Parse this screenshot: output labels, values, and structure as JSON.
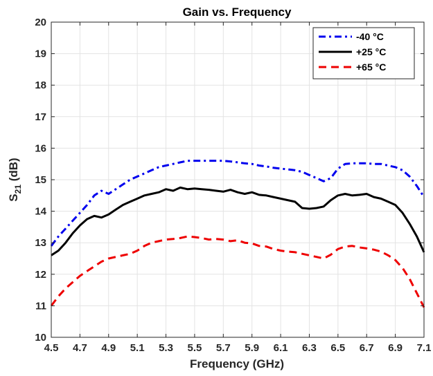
{
  "chart_data": {
    "type": "line",
    "title": "Gain vs. Frequency",
    "xlabel": "Frequency (GHz)",
    "ylabel_main": "S",
    "ylabel_sub": "21",
    "ylabel_suffix": " (dB)",
    "xlim": [
      4.5,
      7.1
    ],
    "ylim": [
      10,
      20
    ],
    "xticks": [
      "4.5",
      "4.7",
      "4.9",
      "5.1",
      "5.3",
      "5.5",
      "5.7",
      "5.9",
      "6.1",
      "6.3",
      "6.5",
      "6.7",
      "6.9",
      "7.1"
    ],
    "yticks": [
      "10",
      "11",
      "12",
      "13",
      "14",
      "15",
      "16",
      "17",
      "18",
      "19",
      "20"
    ],
    "grid": true,
    "legend_position": "top-right",
    "series": [
      {
        "name": "-40 °C",
        "color": "#0000ee",
        "style": "dashdot",
        "x": [
          4.5,
          4.55,
          4.6,
          4.65,
          4.7,
          4.75,
          4.8,
          4.85,
          4.9,
          4.95,
          5.0,
          5.05,
          5.1,
          5.15,
          5.2,
          5.25,
          5.3,
          5.35,
          5.4,
          5.45,
          5.5,
          5.55,
          5.6,
          5.65,
          5.7,
          5.75,
          5.8,
          5.85,
          5.9,
          5.95,
          6.0,
          6.05,
          6.1,
          6.15,
          6.2,
          6.25,
          6.3,
          6.35,
          6.4,
          6.45,
          6.5,
          6.55,
          6.6,
          6.65,
          6.7,
          6.75,
          6.8,
          6.85,
          6.9,
          6.95,
          7.0,
          7.05,
          7.1
        ],
        "y": [
          12.9,
          13.2,
          13.45,
          13.7,
          13.95,
          14.2,
          14.5,
          14.65,
          14.55,
          14.7,
          14.85,
          15.0,
          15.1,
          15.2,
          15.3,
          15.4,
          15.45,
          15.5,
          15.55,
          15.6,
          15.6,
          15.6,
          15.6,
          15.6,
          15.6,
          15.58,
          15.55,
          15.52,
          15.5,
          15.45,
          15.42,
          15.38,
          15.35,
          15.33,
          15.3,
          15.25,
          15.15,
          15.05,
          14.95,
          15.05,
          15.35,
          15.5,
          15.52,
          15.52,
          15.52,
          15.5,
          15.5,
          15.45,
          15.4,
          15.3,
          15.1,
          14.8,
          14.45
        ]
      },
      {
        "name": "+25 °C",
        "color": "#000000",
        "style": "solid",
        "x": [
          4.5,
          4.55,
          4.6,
          4.65,
          4.7,
          4.75,
          4.8,
          4.85,
          4.9,
          4.95,
          5.0,
          5.05,
          5.1,
          5.15,
          5.2,
          5.25,
          5.3,
          5.35,
          5.4,
          5.45,
          5.5,
          5.55,
          5.6,
          5.65,
          5.7,
          5.75,
          5.8,
          5.85,
          5.9,
          5.95,
          6.0,
          6.05,
          6.1,
          6.15,
          6.2,
          6.25,
          6.3,
          6.35,
          6.4,
          6.45,
          6.5,
          6.55,
          6.6,
          6.65,
          6.7,
          6.75,
          6.8,
          6.85,
          6.9,
          6.95,
          7.0,
          7.05,
          7.1
        ],
        "y": [
          12.6,
          12.75,
          13.0,
          13.3,
          13.55,
          13.75,
          13.85,
          13.8,
          13.9,
          14.05,
          14.2,
          14.3,
          14.4,
          14.5,
          14.55,
          14.6,
          14.7,
          14.65,
          14.75,
          14.7,
          14.72,
          14.7,
          14.68,
          14.65,
          14.62,
          14.68,
          14.6,
          14.55,
          14.6,
          14.52,
          14.5,
          14.45,
          14.4,
          14.35,
          14.3,
          14.1,
          14.08,
          14.1,
          14.15,
          14.35,
          14.5,
          14.55,
          14.5,
          14.52,
          14.55,
          14.45,
          14.4,
          14.3,
          14.2,
          13.95,
          13.6,
          13.2,
          12.7
        ]
      },
      {
        "name": "+65 °C",
        "color": "#ee0000",
        "style": "dashed",
        "x": [
          4.5,
          4.55,
          4.6,
          4.65,
          4.7,
          4.75,
          4.8,
          4.85,
          4.9,
          4.95,
          5.0,
          5.05,
          5.1,
          5.15,
          5.2,
          5.25,
          5.3,
          5.35,
          5.4,
          5.45,
          5.5,
          5.55,
          5.6,
          5.65,
          5.7,
          5.75,
          5.8,
          5.85,
          5.9,
          5.95,
          6.0,
          6.05,
          6.1,
          6.15,
          6.2,
          6.25,
          6.3,
          6.35,
          6.4,
          6.45,
          6.5,
          6.55,
          6.6,
          6.65,
          6.7,
          6.75,
          6.8,
          6.85,
          6.9,
          6.95,
          7.0,
          7.05,
          7.1
        ],
        "y": [
          11.0,
          11.3,
          11.55,
          11.75,
          11.95,
          12.1,
          12.25,
          12.4,
          12.5,
          12.55,
          12.6,
          12.65,
          12.75,
          12.9,
          13.0,
          13.05,
          13.1,
          13.12,
          13.15,
          13.2,
          13.18,
          13.15,
          13.1,
          13.12,
          13.1,
          13.05,
          13.08,
          13.0,
          12.98,
          12.9,
          12.88,
          12.8,
          12.75,
          12.72,
          12.7,
          12.65,
          12.6,
          12.55,
          12.5,
          12.62,
          12.8,
          12.88,
          12.9,
          12.85,
          12.82,
          12.78,
          12.72,
          12.6,
          12.45,
          12.2,
          11.85,
          11.4,
          10.95
        ]
      }
    ]
  }
}
